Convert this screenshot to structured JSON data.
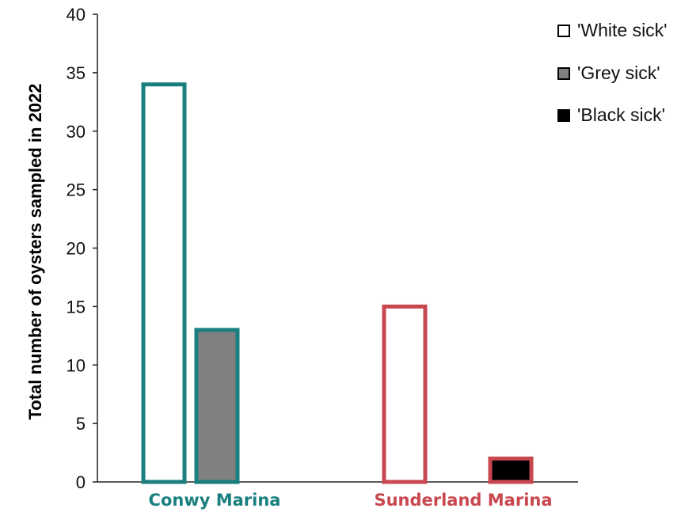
{
  "chart_data": {
    "type": "bar",
    "ylabel": "Total number of oysters sampled in 2022",
    "ylim": [
      0,
      40
    ],
    "yticks": [
      "0",
      "5",
      "10",
      "15",
      "20",
      "25",
      "30",
      "35",
      "40"
    ],
    "grid": false,
    "legend_position": "top-right",
    "categories": [
      {
        "label": "Conwy Marina",
        "color": "#1a7f7f"
      },
      {
        "label": "Sunderland Marina",
        "color": "#c9474f"
      }
    ],
    "series": [
      {
        "name": "'White sick'",
        "fill": "#ffffff",
        "values": [
          34,
          15
        ]
      },
      {
        "name": "'Grey sick'",
        "fill": "#808080",
        "values": [
          13,
          0
        ]
      },
      {
        "name": "'Black sick'",
        "fill": "#000000",
        "values": [
          0,
          2
        ]
      }
    ]
  }
}
